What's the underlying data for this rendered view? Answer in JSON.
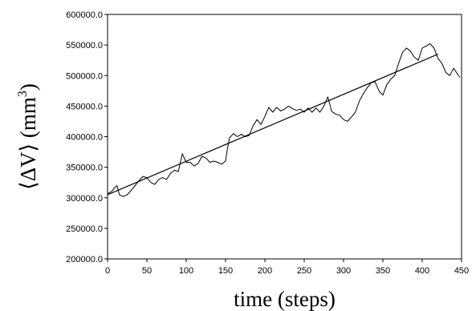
{
  "chart_data": {
    "type": "line",
    "xlabel": "time (steps)",
    "ylabel": {
      "prefix": "⟨ΔV⟩ (mm",
      "superscript": "3",
      "suffix": ")"
    },
    "xlim": [
      0,
      450
    ],
    "ylim": [
      200000,
      600000
    ],
    "xticks": [
      0,
      50,
      100,
      150,
      200,
      250,
      300,
      350,
      400,
      450
    ],
    "yticks": [
      200000,
      250000,
      300000,
      350000,
      400000,
      450000,
      500000,
      550000,
      600000
    ],
    "xtick_labels": [
      "0",
      "50",
      "100",
      "150",
      "200",
      "250",
      "300",
      "350",
      "400",
      "450"
    ],
    "ytick_labels": [
      "200000.0",
      "250000.0",
      "300000.0",
      "350000.0",
      "400000.0",
      "450000.0",
      "500000.0",
      "550000.0",
      "600000.0"
    ],
    "grid": false,
    "series": [
      {
        "style": "noisy",
        "x": [
          0,
          5,
          10,
          12,
          15,
          20,
          25,
          30,
          35,
          40,
          45,
          50,
          55,
          60,
          65,
          70,
          75,
          80,
          85,
          90,
          95,
          100,
          105,
          110,
          115,
          120,
          125,
          130,
          135,
          140,
          145,
          150,
          152,
          155,
          160,
          165,
          170,
          175,
          180,
          185,
          190,
          195,
          200,
          205,
          210,
          215,
          220,
          225,
          230,
          235,
          240,
          245,
          250,
          255,
          260,
          265,
          270,
          275,
          280,
          285,
          290,
          295,
          300,
          305,
          310,
          315,
          320,
          325,
          330,
          335,
          340,
          345,
          350,
          355,
          360,
          365,
          370,
          375,
          380,
          385,
          390,
          395,
          400,
          405,
          410,
          415,
          420,
          425,
          430,
          435,
          440,
          445,
          448
        ],
        "y": [
          307000,
          310000,
          318000,
          320000,
          305000,
          302000,
          305000,
          312000,
          320000,
          328000,
          335000,
          333000,
          325000,
          322000,
          330000,
          333000,
          330000,
          340000,
          345000,
          343000,
          372000,
          358000,
          358000,
          352000,
          356000,
          368000,
          365000,
          358000,
          360000,
          358000,
          355000,
          360000,
          378000,
          398000,
          405000,
          400000,
          404000,
          400000,
          402000,
          418000,
          428000,
          420000,
          433000,
          448000,
          440000,
          448000,
          442000,
          445000,
          450000,
          446000,
          443000,
          445000,
          440000,
          447000,
          440000,
          447000,
          440000,
          450000,
          465000,
          441000,
          437000,
          435000,
          428000,
          425000,
          432000,
          440000,
          458000,
          470000,
          480000,
          488000,
          490000,
          475000,
          468000,
          485000,
          494000,
          500000,
          520000,
          538000,
          545000,
          540000,
          530000,
          525000,
          545000,
          548000,
          552000,
          545000,
          528000,
          520000,
          505000,
          500000,
          512000,
          502000,
          497000
        ]
      },
      {
        "style": "trend",
        "x": [
          0,
          420
        ],
        "y": [
          305000,
          535000
        ]
      }
    ]
  }
}
